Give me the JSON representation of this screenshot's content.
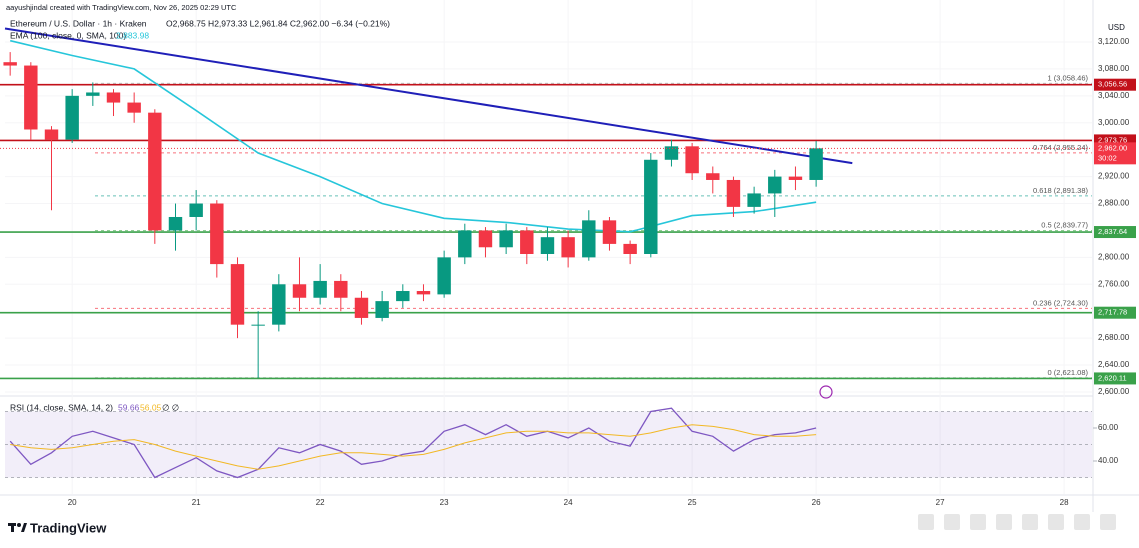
{
  "header": {
    "author": "aayushjindal created with TradingView.com, Nov 26, 2025 02:29 UTC",
    "symbol": "Ethereum / U.S. Dollar · 1h · Kraken",
    "ohlc": "O2,968.75 H2,973.33 L2,961.84 C2,962.00 −6.34 (−0.21%)",
    "brand": "TradingView"
  },
  "chart_data": [
    {
      "type": "candlestick",
      "currency": "USD",
      "up_color": "#089981",
      "down_color": "#f23645",
      "x": [
        12,
        16,
        20,
        24,
        28,
        32,
        36,
        40,
        44,
        48,
        52,
        56,
        60,
        64,
        68,
        72,
        76,
        80,
        84,
        88,
        92,
        96,
        100,
        104,
        108,
        112,
        116,
        120,
        124,
        128,
        132,
        136,
        140,
        144,
        148,
        152,
        156,
        160,
        164,
        168
      ],
      "open": [
        3090,
        3085,
        2990,
        2975,
        3040,
        3045,
        3030,
        3015,
        2840,
        2860,
        2880,
        2790,
        2700,
        2700,
        2760,
        2740,
        2765,
        2740,
        2710,
        2735,
        2750,
        2745,
        2800,
        2840,
        2815,
        2840,
        2805,
        2830,
        2800,
        2855,
        2820,
        2805,
        2945,
        2965,
        2925,
        2915,
        2875,
        2895,
        2920,
        2915
      ],
      "high": [
        3105,
        3090,
        2995,
        3050,
        3060,
        3050,
        3045,
        3020,
        2880,
        2900,
        2885,
        2800,
        2720,
        2775,
        2800,
        2790,
        2775,
        2750,
        2750,
        2760,
        2760,
        2810,
        2850,
        2845,
        2850,
        2845,
        2845,
        2840,
        2870,
        2860,
        2825,
        2955,
        2975,
        2970,
        2935,
        2920,
        2905,
        2930,
        2935,
        2973
      ],
      "low": [
        3070,
        2975,
        2870,
        2970,
        3025,
        3010,
        3000,
        2820,
        2810,
        2840,
        2770,
        2680,
        2621,
        2690,
        2720,
        2730,
        2720,
        2700,
        2705,
        2725,
        2735,
        2740,
        2790,
        2800,
        2805,
        2790,
        2795,
        2785,
        2795,
        2810,
        2790,
        2800,
        2935,
        2915,
        2895,
        2860,
        2865,
        2860,
        2900,
        2905
      ],
      "close": [
        3085,
        2990,
        2975,
        3040,
        3045,
        3030,
        3015,
        2840,
        2860,
        2880,
        2790,
        2700,
        2700,
        2760,
        2740,
        2765,
        2740,
        2710,
        2735,
        2750,
        2745,
        2800,
        2840,
        2815,
        2840,
        2805,
        2830,
        2800,
        2855,
        2820,
        2805,
        2945,
        2965,
        2925,
        2915,
        2875,
        2895,
        2920,
        2915,
        2962
      ],
      "ema": {
        "name": "EMA (100, close, 0, SMA, 100)",
        "value_label": "2,883.98",
        "color": "#26c6da",
        "x": [
          12,
          24,
          36,
          48,
          60,
          72,
          84,
          96,
          108,
          120,
          132,
          144,
          156,
          168
        ],
        "values": [
          3122,
          3100,
          3080,
          3018,
          2955,
          2920,
          2880,
          2858,
          2852,
          2842,
          2838,
          2862,
          2868,
          2882
        ]
      },
      "trendline": {
        "color": "#1f1fb8",
        "x": [
          11,
          175
        ],
        "values": [
          3140,
          2940
        ]
      },
      "levels": [
        {
          "value": 3056.56,
          "label": "3,056.56",
          "color": "#c2101a"
        },
        {
          "value": 2973.76,
          "label": "2,973.76",
          "color": "#c2101a"
        },
        {
          "value": 2837.64,
          "label": "2,837.64",
          "color": "#3aa14a"
        },
        {
          "value": 2717.78,
          "label": "2,717.78",
          "color": "#3aa14a"
        },
        {
          "value": 2620.11,
          "label": "2,620.11",
          "color": "#3aa14a"
        }
      ],
      "last_price": {
        "value": 2962,
        "label": "2,962.00",
        "countdown": "30:02",
        "color": "#f23645"
      },
      "fib": [
        {
          "value": 3058.46,
          "label": "1 (3,058.46)",
          "color": "#9e9e9e"
        },
        {
          "value": 2955.24,
          "label": "0.764 (2,955.24)",
          "color": "#f23645"
        },
        {
          "value": 2891.38,
          "label": "0.618 (2,891.38)",
          "color": "#26a69a"
        },
        {
          "value": 2839.77,
          "label": "0.5 (2,839.77)",
          "color": "#4caf50"
        },
        {
          "value": 2724.3,
          "label": "0.236 (2,724.30)",
          "color": "#f23645"
        },
        {
          "value": 2621.08,
          "label": "0 (2,621.08)",
          "color": "#9e9e9e"
        }
      ],
      "xlim": [
        11,
        221.4
      ],
      "ylim": [
        2595.5,
        3182.4
      ],
      "grid": true,
      "yticks": [
        {
          "value": 3120,
          "label": "3,120.00"
        },
        {
          "value": 3080,
          "label": "3,080.00"
        },
        {
          "value": 3040,
          "label": "3,040.00"
        },
        {
          "value": 3000,
          "label": "3,000.00"
        },
        {
          "value": 2920,
          "label": "2,920.00"
        },
        {
          "value": 2880,
          "label": "2,880.00"
        },
        {
          "value": 2800,
          "label": "2,800.00"
        },
        {
          "value": 2760,
          "label": "2,760.00"
        },
        {
          "value": 2680,
          "label": "2,680.00"
        },
        {
          "value": 2640,
          "label": "2,640.00"
        },
        {
          "value": 2600,
          "label": "2,600.00"
        }
      ],
      "xticks": [
        {
          "value": 24,
          "label": "20"
        },
        {
          "value": 48,
          "label": "21"
        },
        {
          "value": 72,
          "label": "22"
        },
        {
          "value": 96,
          "label": "23"
        },
        {
          "value": 120,
          "label": "24"
        },
        {
          "value": 144,
          "label": "25"
        },
        {
          "value": 168,
          "label": "26"
        },
        {
          "value": 192,
          "label": "27"
        },
        {
          "value": 216,
          "label": "28"
        }
      ]
    },
    {
      "type": "line",
      "title": "RSI (14, close, SMA, 14, 2)",
      "extra": "∅ ∅",
      "x": [
        12,
        16,
        20,
        24,
        28,
        32,
        36,
        40,
        44,
        48,
        52,
        56,
        60,
        64,
        68,
        72,
        76,
        80,
        84,
        88,
        92,
        96,
        100,
        104,
        108,
        112,
        116,
        120,
        124,
        128,
        132,
        136,
        140,
        144,
        148,
        152,
        156,
        160,
        164,
        168
      ],
      "series": [
        {
          "color": "#7e57c2",
          "value_label": "59.66",
          "values": [
            52,
            38,
            45,
            55,
            58,
            54,
            50,
            30,
            36,
            42,
            34,
            30,
            35,
            48,
            45,
            50,
            46,
            38,
            40,
            44,
            46,
            58,
            62,
            56,
            62,
            55,
            58,
            54,
            60,
            52,
            49,
            70,
            72,
            58,
            55,
            46,
            53,
            56,
            57,
            60
          ]
        },
        {
          "color": "#f2b824",
          "value_label": "56.05",
          "values": [
            50,
            48,
            47,
            48,
            50,
            52,
            53,
            50,
            46,
            43,
            40,
            37,
            35,
            37,
            40,
            43,
            45,
            45,
            44,
            43,
            44,
            47,
            51,
            54,
            57,
            58,
            58,
            57,
            57,
            56,
            55,
            57,
            60,
            62,
            61,
            59,
            56,
            55,
            55,
            56
          ]
        }
      ],
      "levels": [
        70,
        50,
        30
      ],
      "band": [
        30,
        70
      ],
      "xlim": [
        11,
        221.4
      ],
      "ylim": [
        20,
        80
      ],
      "yticks": [
        {
          "value": 60,
          "label": "60.00"
        },
        {
          "value": 40,
          "label": "40.00"
        }
      ]
    }
  ]
}
